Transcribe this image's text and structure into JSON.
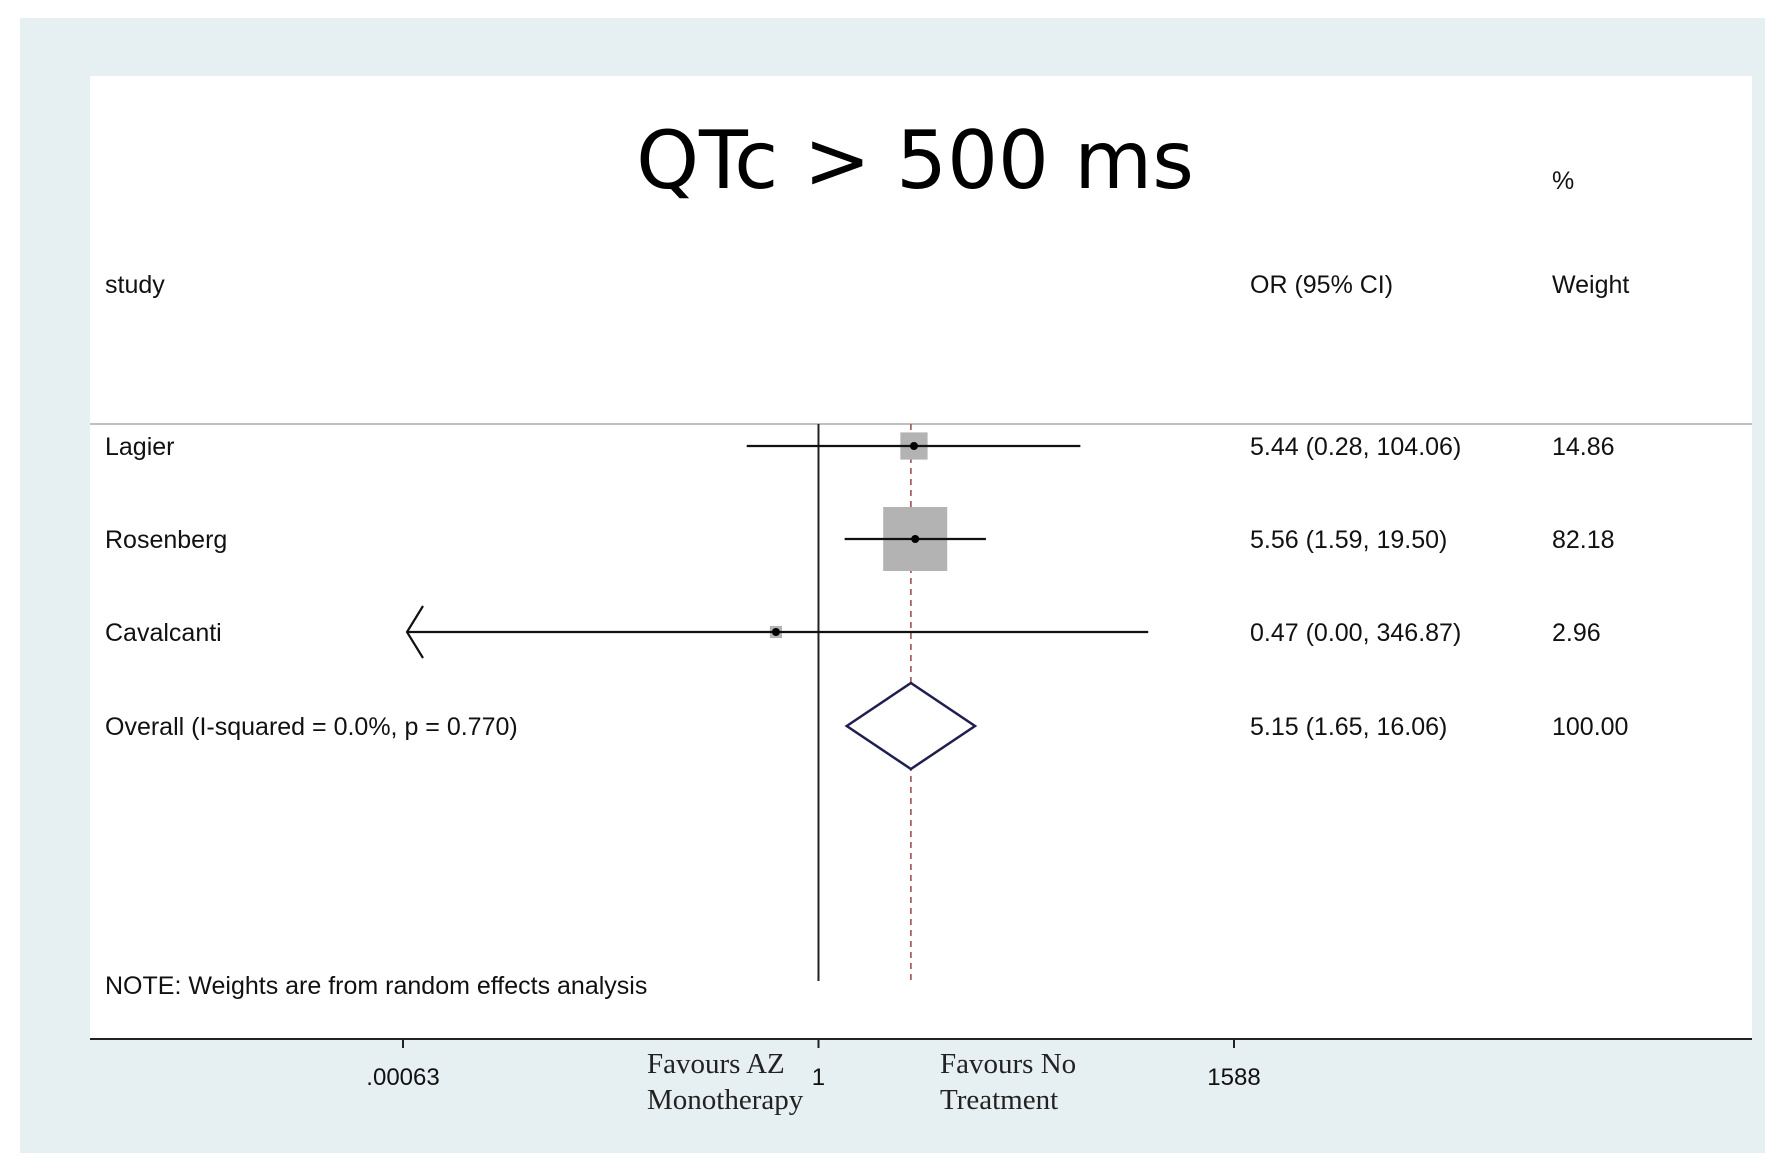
{
  "chart_data": {
    "type": "forest",
    "title": "QTc > 500 ms",
    "headers": {
      "study": "study",
      "or": "OR (95% CI)",
      "weight_pct": "%",
      "weight": "Weight"
    },
    "x_scale": "log",
    "x_range": [
      0.00063,
      1588
    ],
    "x_ticks": [
      {
        "value": 0.00063,
        "label": ".00063"
      },
      {
        "value": 1,
        "label": "1"
      },
      {
        "value": 1588,
        "label": "1588"
      }
    ],
    "null_line": 1,
    "overall_line": 5.15,
    "studies": [
      {
        "name": "Lagier",
        "or": 5.44,
        "lo": 0.28,
        "hi": 104.06,
        "or_text": "5.44 (0.28, 104.06)",
        "weight": 14.86,
        "weight_text": "14.86"
      },
      {
        "name": "Rosenberg",
        "or": 5.56,
        "lo": 1.59,
        "hi": 19.5,
        "or_text": "5.56 (1.59, 19.50)",
        "weight": 82.18,
        "weight_text": "82.18"
      },
      {
        "name": "Cavalcanti",
        "or": 0.47,
        "lo": 0.0,
        "hi": 346.87,
        "or_text": "0.47 (0.00, 346.87)",
        "weight": 2.96,
        "weight_text": "2.96",
        "lower_truncated": true
      }
    ],
    "overall": {
      "label": "Overall  (I-squared = 0.0%, p = 0.770)",
      "or": 5.15,
      "lo": 1.65,
      "hi": 16.06,
      "or_text": "5.15 (1.65, 16.06)",
      "weight_text": "100.00"
    },
    "note": "NOTE: Weights are from random effects analysis",
    "favours_left": [
      "Favours AZ",
      "Monotherapy"
    ],
    "favours_right": [
      "Favours No",
      "Treatment"
    ],
    "colors": {
      "box": "#b3b3b3",
      "diamond": "#1f1f4f",
      "overall_line": "#a05050",
      "frame_bg": "#e6eff1"
    }
  }
}
